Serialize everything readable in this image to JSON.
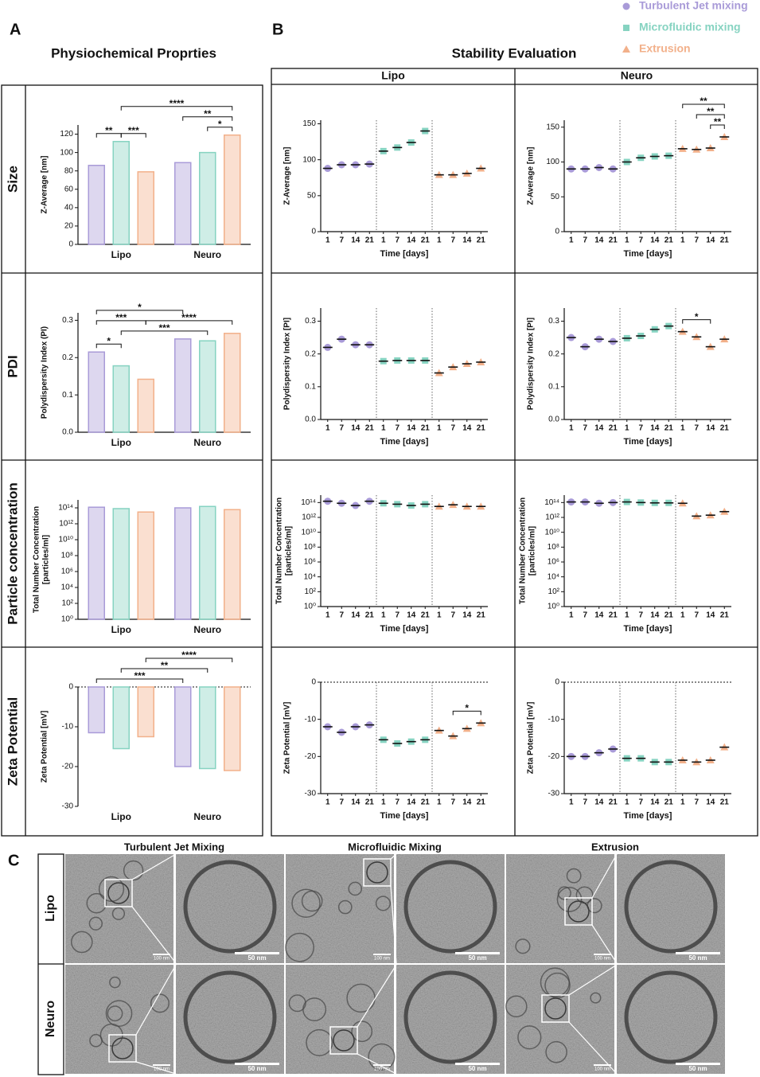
{
  "panels": {
    "A": {
      "label": "A",
      "title": "Physiochemical Proprties"
    },
    "B": {
      "label": "B",
      "title": "Stability Evaluation",
      "columns": [
        "Lipo",
        "Neuro"
      ]
    },
    "C": {
      "label": "C",
      "columns": [
        "Turbulent Jet Mixing",
        "Microfluidic Mixing",
        "Extrusion"
      ],
      "rows": [
        "Lipo",
        "Neuro"
      ],
      "scale_bars": [
        "100 nm",
        "50 nm"
      ]
    }
  },
  "chart_data": [
    {
      "type": "bar",
      "row_label": "Size",
      "ylabel": [
        "Z-Average [nm]"
      ],
      "categories": [
        "Lipo",
        "Neuro"
      ],
      "series": [
        {
          "name": "Turbulent Jet mixing",
          "color": "#a99bd8",
          "marker": "circle",
          "values": [
            86,
            89
          ]
        },
        {
          "name": "Microfluidic mixing",
          "color": "#86d3c1",
          "marker": "square",
          "values": [
            112,
            100
          ]
        },
        {
          "name": "Extrusion",
          "color": "#f2b08a",
          "marker": "triangle",
          "values": [
            79,
            119
          ]
        }
      ],
      "ylim": [
        0,
        130
      ],
      "yticks": [
        0,
        20,
        40,
        60,
        80,
        100,
        120
      ],
      "annotations": [
        {
          "text": "**",
          "from": [
            0,
            0
          ],
          "to": [
            1,
            0
          ]
        },
        {
          "text": "***",
          "from": [
            1,
            0
          ],
          "to": [
            2,
            0
          ]
        },
        {
          "text": "*",
          "from": [
            1,
            1
          ],
          "to": [
            2,
            1
          ]
        },
        {
          "text": "**",
          "from": [
            0,
            1
          ],
          "to": [
            2,
            1
          ]
        },
        {
          "text": "****",
          "from": [
            1,
            0
          ],
          "to": [
            2,
            1
          ]
        }
      ]
    },
    {
      "type": "bar",
      "row_label": "PDI",
      "ylabel": [
        "Polydispersity Index (PI)"
      ],
      "categories": [
        "Lipo",
        "Neuro"
      ],
      "series": [
        {
          "values": [
            0.215,
            0.25
          ]
        },
        {
          "values": [
            0.178,
            0.245
          ]
        },
        {
          "values": [
            0.142,
            0.265
          ]
        }
      ],
      "ylim": [
        0,
        0.32
      ],
      "yticks": [
        {
          "value": 0,
          "label": "0.0"
        },
        0.1,
        0.2,
        0.3
      ],
      "annotations": [
        {
          "text": "*",
          "from": [
            0,
            0
          ],
          "to": [
            1,
            0
          ]
        },
        {
          "text": "***",
          "from": [
            1,
            0
          ],
          "to": [
            1,
            1
          ]
        },
        {
          "text": "***",
          "from": [
            0,
            0
          ],
          "to": [
            2,
            0
          ]
        },
        {
          "text": "****",
          "from": [
            2,
            0
          ],
          "to": [
            2,
            1
          ]
        },
        {
          "text": "*",
          "from": [
            0,
            0
          ],
          "to": [
            0,
            1
          ]
        }
      ]
    },
    {
      "type": "bar",
      "row_label": "Particle concentration",
      "ylabel": [
        "Total Number Concentration",
        "[particles/ml]"
      ],
      "categories": [
        "Lipo",
        "Neuro"
      ],
      "log": true,
      "series": [
        {
          "values": [
            120000000000000.0,
            100000000000000.0
          ]
        },
        {
          "values": [
            80000000000000.0,
            150000000000000.0
          ]
        },
        {
          "values": [
            30000000000000.0,
            60000000000000.0
          ]
        }
      ],
      "ylim": [
        1,
        1000000000000000.0
      ],
      "yticks": [
        {
          "value": 1,
          "label": "10⁰"
        },
        {
          "value": 100,
          "label": "10²"
        },
        {
          "value": 10000,
          "label": "10⁴"
        },
        {
          "value": 1000000,
          "label": "10⁶"
        },
        {
          "value": 100000000,
          "label": "10⁸"
        },
        {
          "value": 10000000000,
          "label": "10¹⁰"
        },
        {
          "value": 1000000000000,
          "label": "10¹²"
        },
        {
          "value": 100000000000000,
          "label": "10¹⁴"
        }
      ]
    },
    {
      "type": "bar",
      "row_label": "Zeta Potential",
      "ylabel": [
        "Zeta Potential [mV]"
      ],
      "categories": [
        "Lipo",
        "Neuro"
      ],
      "zero_line": true,
      "series": [
        {
          "values": [
            -11.5,
            -20
          ]
        },
        {
          "values": [
            -15.5,
            -20.5
          ]
        },
        {
          "values": [
            -12.5,
            -21
          ]
        }
      ],
      "ylim": [
        -30,
        0
      ],
      "yticks": [
        -30,
        -20,
        -10,
        0
      ],
      "annotations": [
        {
          "text": "***",
          "from": [
            0,
            0
          ],
          "to": [
            0,
            1
          ]
        },
        {
          "text": "**",
          "from": [
            1,
            0
          ],
          "to": [
            1,
            1
          ]
        },
        {
          "text": "****",
          "from": [
            2,
            0
          ],
          "to": [
            2,
            1
          ]
        }
      ]
    },
    {
      "type": "strip",
      "xlabel": "Time [days]",
      "ylabel": [
        "Z-Average [nm]"
      ],
      "categories": [
        "1",
        "7",
        "14",
        "21"
      ],
      "series": [
        {
          "values": [
            88,
            93,
            93,
            94
          ]
        },
        {
          "values": [
            112,
            117,
            124,
            140
          ]
        },
        {
          "values": [
            79,
            79,
            81,
            88
          ]
        }
      ],
      "ylim": [
        0,
        155
      ],
      "yticks": [
        0,
        50,
        100,
        150
      ]
    },
    {
      "type": "strip",
      "xlabel": "Time [days]",
      "ylabel": [
        "Z-Average [nm]"
      ],
      "categories": [
        "1",
        "7",
        "14",
        "21"
      ],
      "series": [
        {
          "values": [
            90,
            90,
            92,
            90
          ]
        },
        {
          "values": [
            100,
            106,
            108,
            109
          ]
        },
        {
          "values": [
            119,
            118,
            120,
            136
          ]
        }
      ],
      "ylim": [
        0,
        160
      ],
      "yticks": [
        0,
        50,
        100,
        150
      ],
      "annotations": [
        {
          "text": "**",
          "from": [
            2,
            2
          ],
          "to": [
            2,
            3
          ]
        },
        {
          "text": "**",
          "from": [
            2,
            1
          ],
          "to": [
            2,
            3
          ]
        },
        {
          "text": "**",
          "from": [
            2,
            0
          ],
          "to": [
            2,
            3
          ]
        }
      ]
    },
    {
      "type": "strip",
      "xlabel": "Time [days]",
      "ylabel": [
        "Polydispersity Index [PI]"
      ],
      "categories": [
        "1",
        "7",
        "14",
        "21"
      ],
      "series": [
        {
          "values": [
            0.22,
            0.245,
            0.228,
            0.228
          ]
        },
        {
          "values": [
            0.178,
            0.18,
            0.18,
            0.18
          ]
        },
        {
          "values": [
            0.142,
            0.16,
            0.17,
            0.175
          ]
        }
      ],
      "ylim": [
        0,
        0.34
      ],
      "yticks": [
        {
          "value": 0,
          "label": "0.0"
        },
        0.1,
        0.2,
        0.3
      ]
    },
    {
      "type": "strip",
      "xlabel": "Time [days]",
      "ylabel": [
        "Polydispersity Index [PI]"
      ],
      "categories": [
        "1",
        "7",
        "14",
        "21"
      ],
      "series": [
        {
          "values": [
            0.25,
            0.222,
            0.245,
            0.238
          ]
        },
        {
          "values": [
            0.248,
            0.255,
            0.275,
            0.285
          ]
        },
        {
          "values": [
            0.268,
            0.252,
            0.222,
            0.245
          ]
        }
      ],
      "ylim": [
        0,
        0.34
      ],
      "yticks": [
        {
          "value": 0,
          "label": "0.0"
        },
        0.1,
        0.2,
        0.3
      ],
      "annotations": [
        {
          "text": "*",
          "from": [
            2,
            0
          ],
          "to": [
            2,
            2
          ]
        }
      ]
    },
    {
      "type": "strip",
      "xlabel": "Time [days]",
      "ylabel": [
        "Total Number Concentration",
        "[particles/ml]"
      ],
      "categories": [
        "1",
        "7",
        "14",
        "21"
      ],
      "log": true,
      "series": [
        {
          "values": [
            150000000000000.0,
            80000000000000.0,
            40000000000000.0,
            150000000000000.0
          ]
        },
        {
          "values": [
            80000000000000.0,
            60000000000000.0,
            40000000000000.0,
            60000000000000.0
          ]
        },
        {
          "values": [
            30000000000000.0,
            50000000000000.0,
            30000000000000.0,
            30000000000000.0
          ]
        }
      ],
      "ylim": [
        1,
        1000000000000000.0
      ],
      "yticks": [
        {
          "value": 1,
          "label": "10⁰"
        },
        {
          "value": 100,
          "label": "10²"
        },
        {
          "value": 10000,
          "label": "10⁴"
        },
        {
          "value": 1000000,
          "label": "10⁶"
        },
        {
          "value": 100000000,
          "label": "10⁸"
        },
        {
          "value": 10000000000,
          "label": "10¹⁰"
        },
        {
          "value": 1000000000000,
          "label": "10¹²"
        },
        {
          "value": 100000000000000,
          "label": "10¹⁴"
        }
      ]
    },
    {
      "type": "strip",
      "xlabel": "Time [days]",
      "ylabel": [
        "Total Number Concentration",
        "[particles/ml]"
      ],
      "categories": [
        "1",
        "7",
        "14",
        "21"
      ],
      "log": true,
      "series": [
        {
          "values": [
            120000000000000.0,
            120000000000000.0,
            80000000000000.0,
            100000000000000.0
          ]
        },
        {
          "values": [
            120000000000000.0,
            100000000000000.0,
            90000000000000.0,
            90000000000000.0
          ]
        },
        {
          "values": [
            80000000000000.0,
            1500000000000.0,
            2000000000000.0,
            6000000000000.0
          ]
        }
      ],
      "ylim": [
        1,
        1000000000000000.0
      ],
      "yticks": [
        {
          "value": 1,
          "label": "10⁰"
        },
        {
          "value": 100,
          "label": "10²"
        },
        {
          "value": 10000,
          "label": "10⁴"
        },
        {
          "value": 1000000,
          "label": "10⁶"
        },
        {
          "value": 100000000,
          "label": "10⁸"
        },
        {
          "value": 10000000000,
          "label": "10¹⁰"
        },
        {
          "value": 1000000000000,
          "label": "10¹²"
        },
        {
          "value": 100000000000000,
          "label": "10¹⁴"
        }
      ]
    },
    {
      "type": "strip",
      "xlabel": "Time [days]",
      "ylabel": [
        "Zeta Potential [mV]"
      ],
      "categories": [
        "1",
        "7",
        "14",
        "21"
      ],
      "zero_line": true,
      "series": [
        {
          "values": [
            -12,
            -13.5,
            -12,
            -11.5
          ]
        },
        {
          "values": [
            -15.5,
            -16.5,
            -16,
            -15.5
          ]
        },
        {
          "values": [
            -13,
            -14.5,
            -12.5,
            -11
          ]
        }
      ],
      "ylim": [
        -30,
        0
      ],
      "yticks": [
        -30,
        -20,
        -10,
        0
      ],
      "annotations": [
        {
          "text": "*",
          "from": [
            2,
            1
          ],
          "to": [
            2,
            3
          ]
        }
      ]
    },
    {
      "type": "strip",
      "xlabel": "Time [days]",
      "ylabel": [
        "Zeta Potential [mV]"
      ],
      "categories": [
        "1",
        "7",
        "14",
        "21"
      ],
      "zero_line": true,
      "series": [
        {
          "values": [
            -20,
            -20,
            -19,
            -18
          ]
        },
        {
          "values": [
            -20.5,
            -20.5,
            -21.5,
            -21.5
          ]
        },
        {
          "values": [
            -21,
            -21.5,
            -21,
            -17.5
          ]
        }
      ],
      "ylim": [
        -30,
        0
      ],
      "yticks": [
        -30,
        -20,
        -10,
        0
      ]
    }
  ]
}
